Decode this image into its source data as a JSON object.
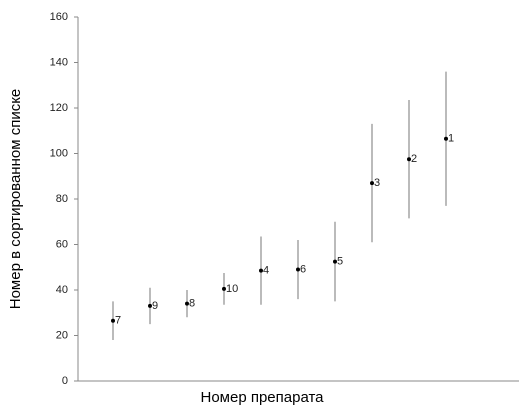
{
  "chart_data": {
    "type": "errorbar",
    "x_label": "Номер препарата",
    "y_label": "Номер в сортированном списке",
    "labels": [
      "7",
      "9",
      "8",
      "10",
      "4",
      "6",
      "5",
      "3",
      "2",
      "1"
    ],
    "values": [
      26.5,
      33,
      34,
      40.5,
      48.5,
      49,
      52.5,
      87,
      97.5,
      106.5
    ],
    "errors": [
      8.5,
      8,
      6,
      7,
      15,
      13,
      17.5,
      26,
      26,
      29.5
    ],
    "color": "#000000",
    "error_color": "#777777",
    "ylim": [
      0,
      160
    ],
    "yticks": [
      0,
      20,
      40,
      60,
      80,
      100,
      120,
      140,
      160
    ]
  }
}
